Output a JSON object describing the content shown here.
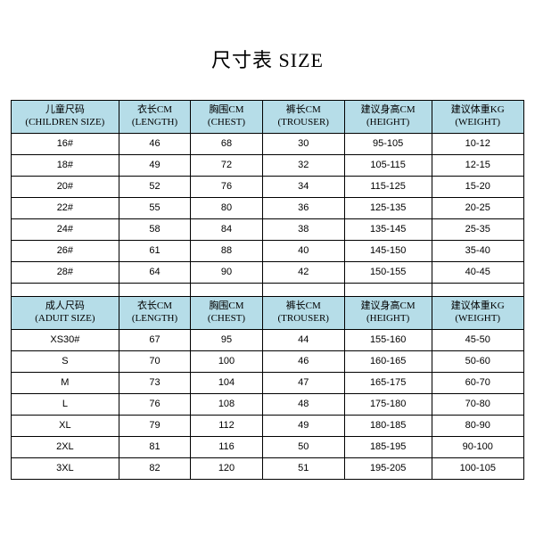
{
  "title": "尺寸表 SIZE",
  "colors": {
    "header_bg": "#b6dde8",
    "border": "#000000",
    "background": "#ffffff"
  },
  "children_table": {
    "type": "table",
    "columns": [
      {
        "cn": "儿童尺码",
        "en": "(CHILDREN SIZE)"
      },
      {
        "cn": "衣长CM",
        "en": "(LENGTH)"
      },
      {
        "cn": "胸围CM",
        "en": "(CHEST)"
      },
      {
        "cn": "裤长CM",
        "en": "(TROUSER)"
      },
      {
        "cn": "建议身高CM",
        "en": "(HEIGHT)"
      },
      {
        "cn": "建议体重KG",
        "en": "(WEIGHT)"
      }
    ],
    "rows": [
      [
        "16#",
        "46",
        "68",
        "30",
        "95-105",
        "10-12"
      ],
      [
        "18#",
        "49",
        "72",
        "32",
        "105-115",
        "12-15"
      ],
      [
        "20#",
        "52",
        "76",
        "34",
        "115-125",
        "15-20"
      ],
      [
        "22#",
        "55",
        "80",
        "36",
        "125-135",
        "20-25"
      ],
      [
        "24#",
        "58",
        "84",
        "38",
        "135-145",
        "25-35"
      ],
      [
        "26#",
        "61",
        "88",
        "40",
        "145-150",
        "35-40"
      ],
      [
        "28#",
        "64",
        "90",
        "42",
        "150-155",
        "40-45"
      ]
    ]
  },
  "adult_table": {
    "type": "table",
    "columns": [
      {
        "cn": "成人尺码",
        "en": "(ADUIT SIZE)"
      },
      {
        "cn": "衣长CM",
        "en": "(LENGTH)"
      },
      {
        "cn": "胸围CM",
        "en": "(CHEST)"
      },
      {
        "cn": "裤长CM",
        "en": "(TROUSER)"
      },
      {
        "cn": "建议身高CM",
        "en": "(HEIGHT)"
      },
      {
        "cn": "建议体重KG",
        "en": "(WEIGHT)"
      }
    ],
    "rows": [
      [
        "XS30#",
        "67",
        "95",
        "44",
        "155-160",
        "45-50"
      ],
      [
        "S",
        "70",
        "100",
        "46",
        "160-165",
        "50-60"
      ],
      [
        "M",
        "73",
        "104",
        "47",
        "165-175",
        "60-70"
      ],
      [
        "L",
        "76",
        "108",
        "48",
        "175-180",
        "70-80"
      ],
      [
        "XL",
        "79",
        "112",
        "49",
        "180-185",
        "80-90"
      ],
      [
        "2XL",
        "81",
        "116",
        "50",
        "185-195",
        "90-100"
      ],
      [
        "3XL",
        "82",
        "120",
        "51",
        "195-205",
        "100-105"
      ]
    ]
  }
}
